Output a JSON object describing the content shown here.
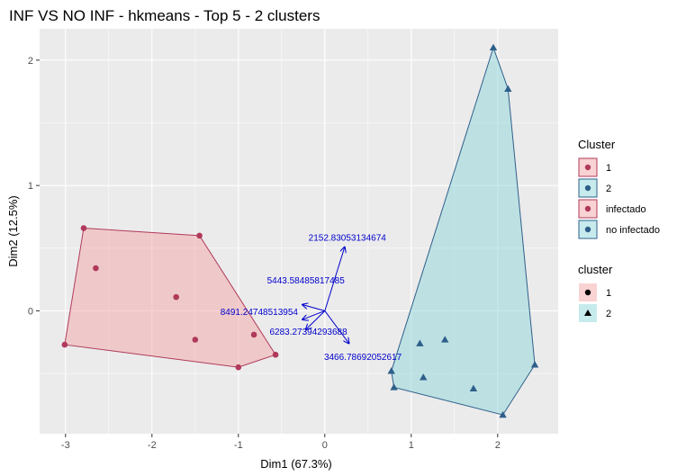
{
  "chart_data": {
    "type": "scatter",
    "title": "INF VS NO INF - hkmeans - Top 5 - 2 clusters",
    "xlabel": "Dim1 (67.3%)",
    "ylabel": "Dim2 (12.5%)",
    "xlim": [
      -3.3,
      2.7
    ],
    "ylim": [
      -0.98,
      2.25
    ],
    "x_ticks": [
      -3,
      -2,
      -1,
      0,
      1,
      2
    ],
    "y_ticks": [
      -1,
      0,
      1,
      2
    ],
    "x_tick_labels": [
      "-3",
      "-2",
      "-1",
      "0",
      "1",
      "2"
    ],
    "y_tick_labels": [
      "",
      "0",
      "1",
      "2"
    ],
    "grid": true,
    "background_color": "#EBEBEB",
    "colors": {
      "cluster1": "#B03A5B",
      "cluster1_fill": "#F4A8A8",
      "cluster2": "#2E5F8A",
      "cluster2_fill": "#8FD8DC",
      "arrow": "#0000CC"
    },
    "series": [
      {
        "name": "1",
        "marker": "circle",
        "points": [
          {
            "x": -2.79,
            "y": 0.66
          },
          {
            "x": -2.65,
            "y": 0.34
          },
          {
            "x": -1.72,
            "y": 0.11
          },
          {
            "x": -1.45,
            "y": 0.6
          },
          {
            "x": -1.5,
            "y": -0.23
          },
          {
            "x": -0.82,
            "y": -0.19
          },
          {
            "x": -1.0,
            "y": -0.45
          },
          {
            "x": -0.57,
            "y": -0.35
          },
          {
            "x": -3.01,
            "y": -0.27
          }
        ]
      },
      {
        "name": "2",
        "marker": "triangle",
        "points": [
          {
            "x": 1.95,
            "y": 2.1
          },
          {
            "x": 2.12,
            "y": 1.77
          },
          {
            "x": 1.39,
            "y": -0.23
          },
          {
            "x": 1.1,
            "y": -0.26
          },
          {
            "x": 1.14,
            "y": -0.53
          },
          {
            "x": 0.77,
            "y": -0.48
          },
          {
            "x": 0.8,
            "y": -0.61
          },
          {
            "x": 1.72,
            "y": -0.62
          },
          {
            "x": 2.43,
            "y": -0.43
          },
          {
            "x": 2.06,
            "y": -0.83
          }
        ]
      }
    ],
    "hulls": [
      {
        "cluster": "1",
        "points": [
          {
            "x": -2.79,
            "y": 0.66
          },
          {
            "x": -1.45,
            "y": 0.6
          },
          {
            "x": -0.57,
            "y": -0.35
          },
          {
            "x": -1.0,
            "y": -0.45
          },
          {
            "x": -3.01,
            "y": -0.27
          }
        ]
      },
      {
        "cluster": "2",
        "points": [
          {
            "x": 1.95,
            "y": 2.1
          },
          {
            "x": 2.12,
            "y": 1.77
          },
          {
            "x": 2.43,
            "y": -0.43
          },
          {
            "x": 2.06,
            "y": -0.83
          },
          {
            "x": 0.8,
            "y": -0.61
          },
          {
            "x": 0.77,
            "y": -0.48
          }
        ]
      }
    ],
    "arrows": [
      {
        "label": "2152.83053134674",
        "x": 0.23,
        "y": 0.51,
        "label_x": 0.26,
        "label_y": 0.58
      },
      {
        "label": "5443.58485817485",
        "x": -0.26,
        "y": 0.05,
        "label_x": -0.22,
        "label_y": 0.24
      },
      {
        "label": "8491.24748513954",
        "x": -0.26,
        "y": -0.07,
        "label_x": -0.76,
        "label_y": -0.01
      },
      {
        "label": "6283.27394293688",
        "x": -0.22,
        "y": -0.15,
        "label_x": -0.19,
        "label_y": -0.17
      },
      {
        "label": "3466.78692052617",
        "x": 0.28,
        "y": -0.26,
        "label_x": 0.44,
        "label_y": -0.37
      }
    ],
    "legend": {
      "position": "right",
      "groups": [
        {
          "title": "Cluster",
          "entries": [
            {
              "label": "1",
              "symbol": "circle",
              "color": "#B03A5B",
              "fill": "#F4A8A8"
            },
            {
              "label": "2",
              "symbol": "circle",
              "color": "#2E5F8A",
              "fill": "#8FD8DC"
            },
            {
              "label": "infectado",
              "symbol": "circle",
              "color": "#B03A5B",
              "fill": "#F4A8A8"
            },
            {
              "label": "no infectado",
              "symbol": "circle",
              "color": "#2E5F8A",
              "fill": "#8FD8DC"
            }
          ]
        },
        {
          "title": "cluster",
          "entries": [
            {
              "label": "1",
              "symbol": "circle",
              "color": "#000000",
              "fill": "#F4A8A8"
            },
            {
              "label": "2",
              "symbol": "triangle",
              "color": "#000000",
              "fill": "#8FD8DC"
            }
          ]
        }
      ]
    }
  }
}
